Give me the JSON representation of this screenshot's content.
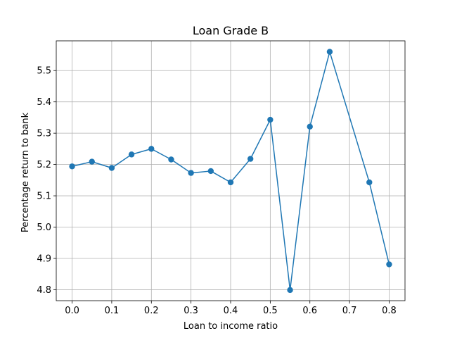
{
  "chart_data": {
    "type": "line",
    "title": "Loan Grade B",
    "xlabel": "Loan to income ratio",
    "ylabel": "Percentage return to bank",
    "xlim": [
      -0.04,
      0.84
    ],
    "ylim": [
      4.765,
      5.595
    ],
    "xticks": [
      0.0,
      0.1,
      0.2,
      0.3,
      0.4,
      0.5,
      0.6,
      0.7,
      0.8
    ],
    "xtick_labels": [
      "0.0",
      "0.1",
      "0.2",
      "0.3",
      "0.4",
      "0.5",
      "0.6",
      "0.7",
      "0.8"
    ],
    "yticks": [
      4.8,
      4.9,
      5.0,
      5.1,
      5.2,
      5.3,
      5.4,
      5.5
    ],
    "ytick_labels": [
      "4.8",
      "4.9",
      "5.0",
      "5.1",
      "5.2",
      "5.3",
      "5.4",
      "5.5"
    ],
    "grid": true,
    "series": [
      {
        "color": "#1f77b4",
        "x": [
          0.0,
          0.05,
          0.1,
          0.15,
          0.2,
          0.25,
          0.3,
          0.35,
          0.4,
          0.45,
          0.5,
          0.55,
          0.6,
          0.65,
          0.75,
          0.8
        ],
        "y": [
          5.194,
          5.209,
          5.189,
          5.232,
          5.25,
          5.216,
          5.173,
          5.179,
          5.143,
          5.218,
          5.343,
          4.799,
          5.321,
          5.56,
          5.143,
          4.881
        ]
      }
    ]
  }
}
